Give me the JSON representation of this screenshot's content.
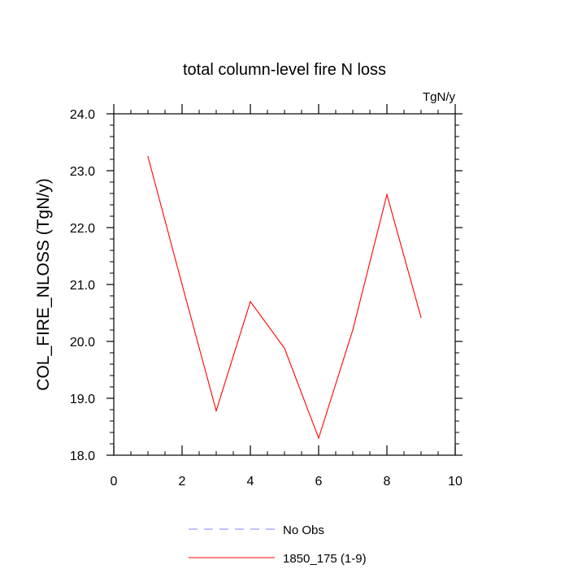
{
  "chart_data": {
    "type": "line",
    "title": "total column-level fire N loss",
    "units": "TgN/y",
    "ylabel": "COL_FIRE_NLOSS  (TgN/y)",
    "xlabel": "",
    "xlim": [
      0,
      10
    ],
    "ylim": [
      18.0,
      24.0
    ],
    "x_ticks": [
      0,
      2,
      4,
      6,
      8,
      10
    ],
    "x_tick_labels": [
      "0",
      "2",
      "4",
      "6",
      "8",
      "10"
    ],
    "y_ticks": [
      18.0,
      19.0,
      20.0,
      21.0,
      22.0,
      23.0,
      24.0
    ],
    "y_tick_labels": [
      "18.0",
      "19.0",
      "20.0",
      "21.0",
      "22.0",
      "23.0",
      "24.0"
    ],
    "grid": false,
    "legend_position": "bottom",
    "series": [
      {
        "name": "1850_175 (1-9)",
        "color": "#ff0000",
        "style": "solid",
        "x": [
          1,
          2,
          3,
          4,
          5,
          6,
          7,
          8,
          9
        ],
        "values": [
          23.25,
          21.0,
          18.78,
          20.7,
          19.88,
          18.3,
          20.2,
          22.58,
          20.42
        ]
      }
    ],
    "legend": [
      {
        "label": "No Obs",
        "color": "#8080ff",
        "style": "dashed"
      },
      {
        "label": "1850_175 (1-9)",
        "color": "#ff0000",
        "style": "solid"
      }
    ]
  }
}
